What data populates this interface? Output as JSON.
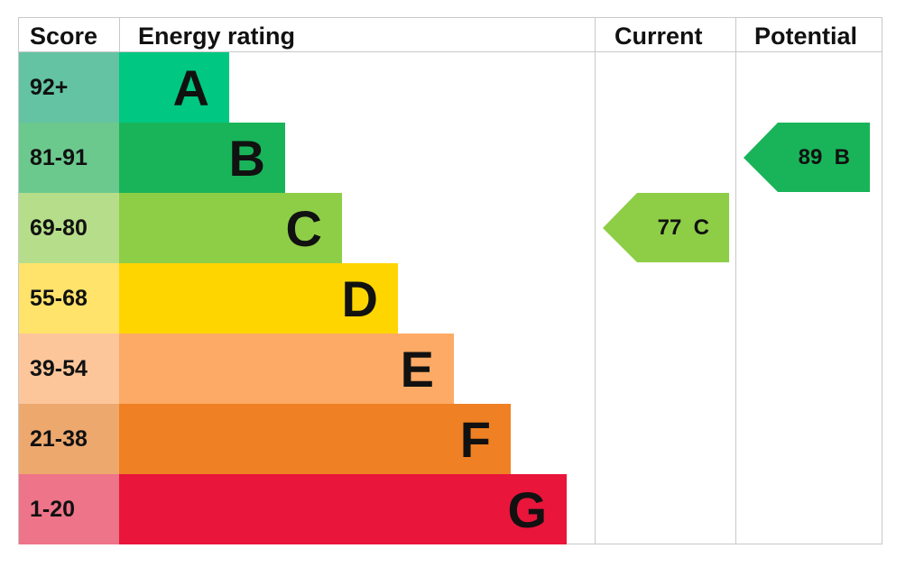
{
  "headers": {
    "score": "Score",
    "rating": "Energy rating",
    "current": "Current",
    "potential": "Potential"
  },
  "chart_data": {
    "type": "bar",
    "categories": [
      "A",
      "B",
      "C",
      "D",
      "E",
      "F",
      "G"
    ],
    "bands": [
      {
        "letter": "A",
        "range": "92+",
        "color": "#00c781",
        "score_color": "#63c3a2"
      },
      {
        "letter": "B",
        "range": "81-91",
        "color": "#19b459",
        "score_color": "#6bc98e"
      },
      {
        "letter": "C",
        "range": "69-80",
        "color": "#8dce46",
        "score_color": "#b6de8a"
      },
      {
        "letter": "D",
        "range": "55-68",
        "color": "#ffd500",
        "score_color": "#ffe36a"
      },
      {
        "letter": "E",
        "range": "39-54",
        "color": "#fcaa65",
        "score_color": "#fcc69a"
      },
      {
        "letter": "F",
        "range": "21-38",
        "color": "#ef8023",
        "score_color": "#eda86e"
      },
      {
        "letter": "G",
        "range": "1-20",
        "color": "#e9153b",
        "score_color": "#ee7489"
      }
    ],
    "current": {
      "value": 77,
      "band": "C",
      "label": "77  C",
      "color": "#8dce46"
    },
    "potential": {
      "value": 89,
      "band": "B",
      "label": "89  B",
      "color": "#19b459"
    }
  }
}
